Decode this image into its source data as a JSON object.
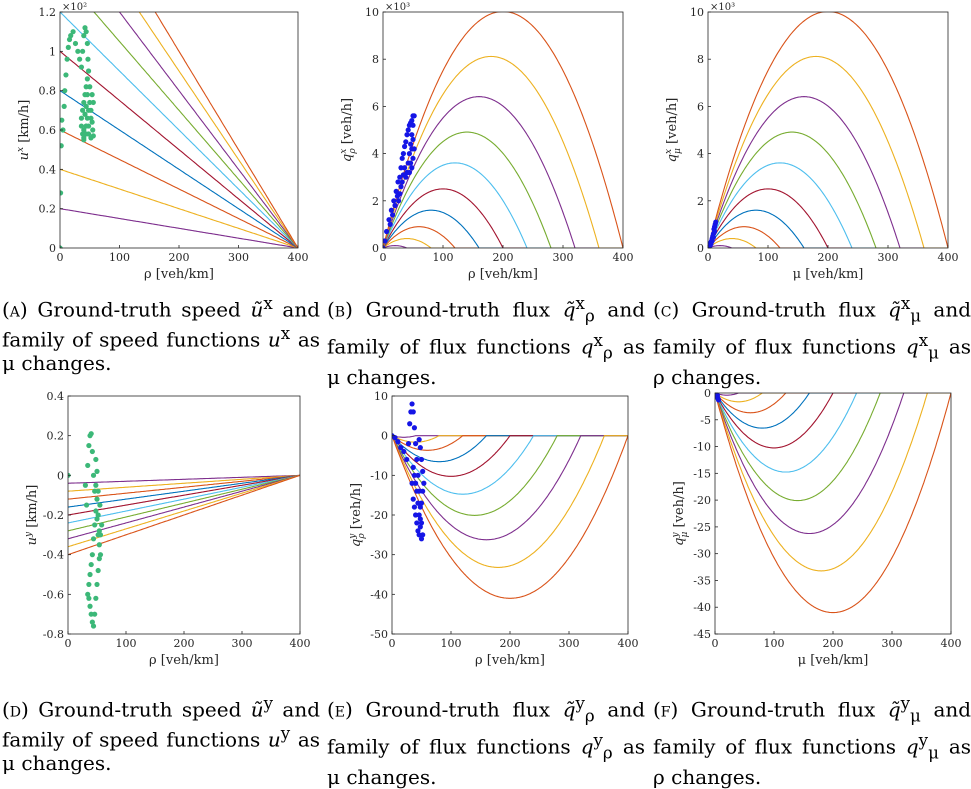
{
  "chart_data": [
    {
      "id": "a",
      "type": "line",
      "xlabel": "ρ [veh/km]",
      "ylabel_var": "u",
      "ylabel_sup": "x",
      "ylabel_unit": " [km/h]",
      "xlim": [
        0,
        400
      ],
      "ylim": [
        0,
        120
      ],
      "xticks": [
        "0",
        "100",
        "200",
        "300",
        "400"
      ],
      "yticks": [
        "0",
        "0.2",
        "0.4",
        "0.6",
        "0.8",
        "1",
        "1.2"
      ],
      "yexp": "×10²",
      "family": "linear_decreasing",
      "family_params": [
        20,
        40,
        60,
        80,
        100,
        120,
        140,
        160,
        180,
        200
      ],
      "scatter_color": "#3cb878",
      "scatter_points": [
        [
          0,
          0
        ],
        [
          1,
          28
        ],
        [
          2,
          52
        ],
        [
          3,
          65
        ],
        [
          5,
          60
        ],
        [
          7,
          72
        ],
        [
          8,
          80
        ],
        [
          10,
          88
        ],
        [
          12,
          96
        ],
        [
          14,
          102
        ],
        [
          16,
          106
        ],
        [
          18,
          108
        ],
        [
          22,
          110
        ],
        [
          26,
          104
        ],
        [
          30,
          100
        ],
        [
          33,
          96
        ],
        [
          36,
          92
        ],
        [
          38,
          100
        ],
        [
          40,
          108
        ],
        [
          42,
          112
        ],
        [
          44,
          110
        ],
        [
          46,
          104
        ],
        [
          47,
          96
        ],
        [
          48,
          90
        ],
        [
          46,
          86
        ],
        [
          44,
          82
        ],
        [
          42,
          78
        ],
        [
          40,
          74
        ],
        [
          38,
          70
        ],
        [
          36,
          66
        ],
        [
          36,
          62
        ],
        [
          38,
          58
        ],
        [
          40,
          55
        ],
        [
          42,
          58
        ],
        [
          44,
          62
        ],
        [
          46,
          66
        ],
        [
          48,
          70
        ],
        [
          50,
          74
        ],
        [
          52,
          70
        ],
        [
          54,
          64
        ],
        [
          55,
          60
        ],
        [
          56,
          57
        ],
        [
          52,
          56
        ],
        [
          48,
          58
        ],
        [
          44,
          62
        ],
        [
          40,
          60
        ],
        [
          42,
          68
        ],
        [
          44,
          72
        ],
        [
          46,
          78
        ],
        [
          50,
          82
        ],
        [
          54,
          78
        ],
        [
          56,
          74
        ],
        [
          52,
          66
        ],
        [
          48,
          62
        ],
        [
          44,
          58
        ],
        [
          40,
          56
        ]
      ]
    },
    {
      "id": "b",
      "type": "line",
      "xlabel": "ρ [veh/km]",
      "ylabel_var": "q",
      "ylabel_sup": "x",
      "ylabel_sub": "ρ",
      "ylabel_unit": " [veh/h]",
      "xlim": [
        0,
        400
      ],
      "ylim": [
        0,
        10
      ],
      "xticks": [
        "0",
        "100",
        "200",
        "300",
        "400"
      ],
      "yticks": [
        "0",
        "2",
        "4",
        "6",
        "8",
        "10"
      ],
      "yexp": "×10³",
      "family": "parabola_down",
      "family_params": [
        40,
        80,
        120,
        160,
        200,
        240,
        280,
        320,
        360,
        400
      ],
      "scatter_color": "#1515e6",
      "scatter_points": [
        [
          0,
          0
        ],
        [
          3,
          0.3
        ],
        [
          6,
          0.7
        ],
        [
          10,
          1.2
        ],
        [
          14,
          1.6
        ],
        [
          18,
          2.0
        ],
        [
          22,
          2.4
        ],
        [
          25,
          2.8
        ],
        [
          28,
          3.0
        ],
        [
          30,
          3.4
        ],
        [
          32,
          3.8
        ],
        [
          34,
          4.0
        ],
        [
          36,
          4.3
        ],
        [
          38,
          4.5
        ],
        [
          40,
          4.8
        ],
        [
          42,
          5.0
        ],
        [
          44,
          5.2
        ],
        [
          46,
          5.3
        ],
        [
          48,
          5.4
        ],
        [
          50,
          5.6
        ],
        [
          52,
          5.6
        ],
        [
          50,
          5.2
        ],
        [
          48,
          4.8
        ],
        [
          46,
          4.4
        ],
        [
          44,
          4.0
        ],
        [
          42,
          3.6
        ],
        [
          40,
          3.2
        ],
        [
          38,
          3.0
        ],
        [
          36,
          3.4
        ],
        [
          34,
          3.1
        ],
        [
          32,
          2.8
        ],
        [
          30,
          2.6
        ],
        [
          28,
          2.3
        ],
        [
          44,
          3.2
        ],
        [
          46,
          3.6
        ],
        [
          48,
          4.2
        ],
        [
          50,
          4.6
        ],
        [
          52,
          4.2
        ],
        [
          50,
          3.8
        ],
        [
          48,
          3.4
        ],
        [
          26,
          2.0
        ],
        [
          24,
          2.2
        ],
        [
          20,
          1.8
        ],
        [
          16,
          1.4
        ],
        [
          12,
          1.0
        ]
      ]
    },
    {
      "id": "c",
      "type": "line",
      "xlabel": "μ [veh/km]",
      "ylabel_var": "q",
      "ylabel_sup": "x",
      "ylabel_sub": "μ",
      "ylabel_unit": " [veh/h]",
      "xlim": [
        0,
        400
      ],
      "ylim": [
        0,
        10
      ],
      "xticks": [
        "0",
        "100",
        "200",
        "300",
        "400"
      ],
      "yticks": [
        "0",
        "2",
        "4",
        "6",
        "8",
        "10"
      ],
      "yexp": "×10³",
      "family": "parabola_down",
      "family_params": [
        40,
        80,
        120,
        160,
        200,
        240,
        280,
        320,
        360,
        400
      ],
      "scatter_color": "#1515e6",
      "scatter_points": [
        [
          0,
          0
        ],
        [
          1,
          0.05
        ],
        [
          2,
          0.1
        ],
        [
          3,
          0.15
        ],
        [
          4,
          0.2
        ],
        [
          5,
          0.25
        ],
        [
          6,
          0.3
        ],
        [
          7,
          0.4
        ],
        [
          8,
          0.5
        ],
        [
          9,
          0.6
        ],
        [
          10,
          0.8
        ],
        [
          11,
          0.9
        ],
        [
          12,
          1.0
        ],
        [
          13,
          1.1
        ],
        [
          11,
          0.7
        ],
        [
          9,
          0.45
        ],
        [
          7,
          0.3
        ],
        [
          5,
          0.18
        ],
        [
          3,
          0.08
        ]
      ]
    },
    {
      "id": "d",
      "type": "line",
      "xlabel": "ρ [veh/km]",
      "ylabel_var": "u",
      "ylabel_sup": "y",
      "ylabel_unit": " [km/h]",
      "xlim": [
        0,
        400
      ],
      "ylim": [
        -0.8,
        0.4
      ],
      "xticks": [
        "0",
        "100",
        "200",
        "300",
        "400"
      ],
      "yticks": [
        "-0.8",
        "-0.6",
        "-0.4",
        "-0.2",
        "0",
        "0.2",
        "0.4"
      ],
      "yexp": "",
      "family": "linear_increasing",
      "family_params": [
        0.04,
        0.08,
        0.12,
        0.16,
        0.2,
        0.24,
        0.28,
        0.32,
        0.36,
        0.4
      ],
      "scatter_color": "#3cb878",
      "scatter_points": [
        [
          0,
          0
        ],
        [
          30,
          -0.05
        ],
        [
          32,
          -0.15
        ],
        [
          34,
          0.05
        ],
        [
          36,
          0.15
        ],
        [
          38,
          0.2
        ],
        [
          40,
          0.21
        ],
        [
          42,
          0.12
        ],
        [
          44,
          0.0
        ],
        [
          46,
          -0.08
        ],
        [
          48,
          -0.18
        ],
        [
          50,
          -0.22
        ],
        [
          52,
          -0.3
        ],
        [
          54,
          -0.35
        ],
        [
          56,
          -0.4
        ],
        [
          54,
          -0.28
        ],
        [
          52,
          -0.2
        ],
        [
          50,
          -0.12
        ],
        [
          48,
          -0.05
        ],
        [
          46,
          -0.25
        ],
        [
          44,
          -0.32
        ],
        [
          42,
          -0.4
        ],
        [
          40,
          -0.45
        ],
        [
          38,
          -0.5
        ],
        [
          36,
          -0.55
        ],
        [
          34,
          -0.6
        ],
        [
          36,
          -0.62
        ],
        [
          38,
          -0.66
        ],
        [
          40,
          -0.7
        ],
        [
          42,
          -0.74
        ],
        [
          44,
          -0.76
        ],
        [
          46,
          -0.7
        ],
        [
          48,
          -0.62
        ],
        [
          50,
          -0.55
        ],
        [
          52,
          -0.48
        ],
        [
          54,
          -0.42
        ],
        [
          56,
          -0.3
        ],
        [
          58,
          -0.25
        ],
        [
          55,
          -0.15
        ],
        [
          52,
          -0.08
        ],
        [
          50,
          0.02
        ],
        [
          48,
          0.08
        ]
      ]
    },
    {
      "id": "e",
      "type": "line",
      "xlabel": "ρ [veh/km]",
      "ylabel_var": "q",
      "ylabel_sup": "y",
      "ylabel_sub": "ρ",
      "ylabel_unit": " [veh/h]",
      "xlim": [
        0,
        400
      ],
      "ylim": [
        -50,
        10
      ],
      "xticks": [
        "0",
        "100",
        "200",
        "300",
        "400"
      ],
      "yticks": [
        "-50",
        "-40",
        "-30",
        "-20",
        "-10",
        "0",
        "10"
      ],
      "yexp": "",
      "family": "parabola_up",
      "family_params": [
        40,
        80,
        120,
        160,
        200,
        240,
        280,
        320,
        360,
        400
      ],
      "scatter_color": "#1515e6",
      "scatter_points": [
        [
          0,
          0
        ],
        [
          5,
          -0.5
        ],
        [
          10,
          -1.5
        ],
        [
          15,
          -3
        ],
        [
          20,
          -4
        ],
        [
          25,
          -6
        ],
        [
          28,
          -2
        ],
        [
          30,
          3
        ],
        [
          32,
          6
        ],
        [
          34,
          8
        ],
        [
          36,
          6
        ],
        [
          38,
          2
        ],
        [
          40,
          -2
        ],
        [
          42,
          -6
        ],
        [
          44,
          -10
        ],
        [
          46,
          -14
        ],
        [
          48,
          -18
        ],
        [
          50,
          -22
        ],
        [
          52,
          -25
        ],
        [
          50,
          -26
        ],
        [
          48,
          -23
        ],
        [
          46,
          -20
        ],
        [
          44,
          -17
        ],
        [
          42,
          -14
        ],
        [
          40,
          -12
        ],
        [
          38,
          -10
        ],
        [
          36,
          -8
        ],
        [
          34,
          -12
        ],
        [
          36,
          -16
        ],
        [
          38,
          -18
        ],
        [
          40,
          -20
        ],
        [
          42,
          -22
        ],
        [
          44,
          -24
        ],
        [
          46,
          -25
        ],
        [
          48,
          -21
        ],
        [
          50,
          -17
        ],
        [
          52,
          -14
        ],
        [
          54,
          -12
        ],
        [
          52,
          -9
        ],
        [
          50,
          -6
        ],
        [
          48,
          -3
        ],
        [
          46,
          -1
        ]
      ]
    },
    {
      "id": "f",
      "type": "line",
      "xlabel": "μ [veh/km]",
      "ylabel_var": "q",
      "ylabel_sup": "y",
      "ylabel_sub": "μ",
      "ylabel_unit": " [veh/h]",
      "xlim": [
        0,
        400
      ],
      "ylim": [
        -45,
        0
      ],
      "xticks": [
        "0",
        "100",
        "200",
        "300",
        "400"
      ],
      "yticks": [
        "-45",
        "-40",
        "-35",
        "-30",
        "-25",
        "-20",
        "-15",
        "-10",
        "-5",
        "0"
      ],
      "yexp": "",
      "family": "parabola_up",
      "family_params": [
        40,
        80,
        120,
        160,
        200,
        240,
        280,
        320,
        360,
        400
      ],
      "scatter_color": "#1515e6",
      "scatter_points": [
        [
          0,
          0
        ],
        [
          1,
          -0.1
        ],
        [
          2,
          -0.3
        ],
        [
          3,
          -0.5
        ],
        [
          4,
          -0.8
        ],
        [
          5,
          -1.0
        ],
        [
          6,
          -1.3
        ],
        [
          4,
          -0.4
        ],
        [
          3,
          -0.2
        ],
        [
          2,
          -0.05
        ]
      ]
    }
  ],
  "line_colors": [
    "#7e2f8e",
    "#edb120",
    "#d95319",
    "#0072bd",
    "#a2142f",
    "#4dbeee",
    "#77ac30",
    "#7e2f8e",
    "#edb120",
    "#d95319"
  ],
  "captions": {
    "a": {
      "tag": "(a)",
      "title": "Ground-truth speed",
      "var": "ũ",
      "sup": "x",
      "line2": "and family of speed functions",
      "var3": "u",
      "sup3": "x",
      "tail": "as μ changes."
    },
    "b": {
      "tag": "(b)",
      "title": "Ground-truth flux",
      "var": "q̃",
      "sup": "x",
      "sub": "ρ",
      "line2": "and family of flux functions",
      "var3": "q",
      "sup3": "x",
      "sub3": "ρ",
      "tail": "as μ changes."
    },
    "c": {
      "tag": "(c)",
      "title": "Ground-truth flux",
      "var": "q̃",
      "sup": "x",
      "sub": "μ",
      "line2": "and family of flux functions",
      "var3": "q",
      "sup3": "x",
      "sub3": "μ",
      "tail": "as ρ changes."
    },
    "d": {
      "tag": "(d)",
      "title": "Ground-truth speed",
      "var": "ũ",
      "sup": "y",
      "line2": "and family of speed functions",
      "var3": "u",
      "sup3": "y",
      "tail": "as μ changes."
    },
    "e": {
      "tag": "(e)",
      "title": "Ground-truth flux",
      "var": "q̃",
      "sup": "y",
      "sub": "ρ",
      "line2": "and family of flux functions",
      "var3": "q",
      "sup3": "y",
      "sub3": "ρ",
      "tail": "as μ changes."
    },
    "f": {
      "tag": "(f)",
      "title": "Ground-truth flux",
      "var": "q̃",
      "sup": "y",
      "sub": "μ",
      "line2": "and family of flux functions",
      "var3": "q",
      "sup3": "y",
      "sub3": "μ",
      "tail": "as ρ changes."
    }
  }
}
